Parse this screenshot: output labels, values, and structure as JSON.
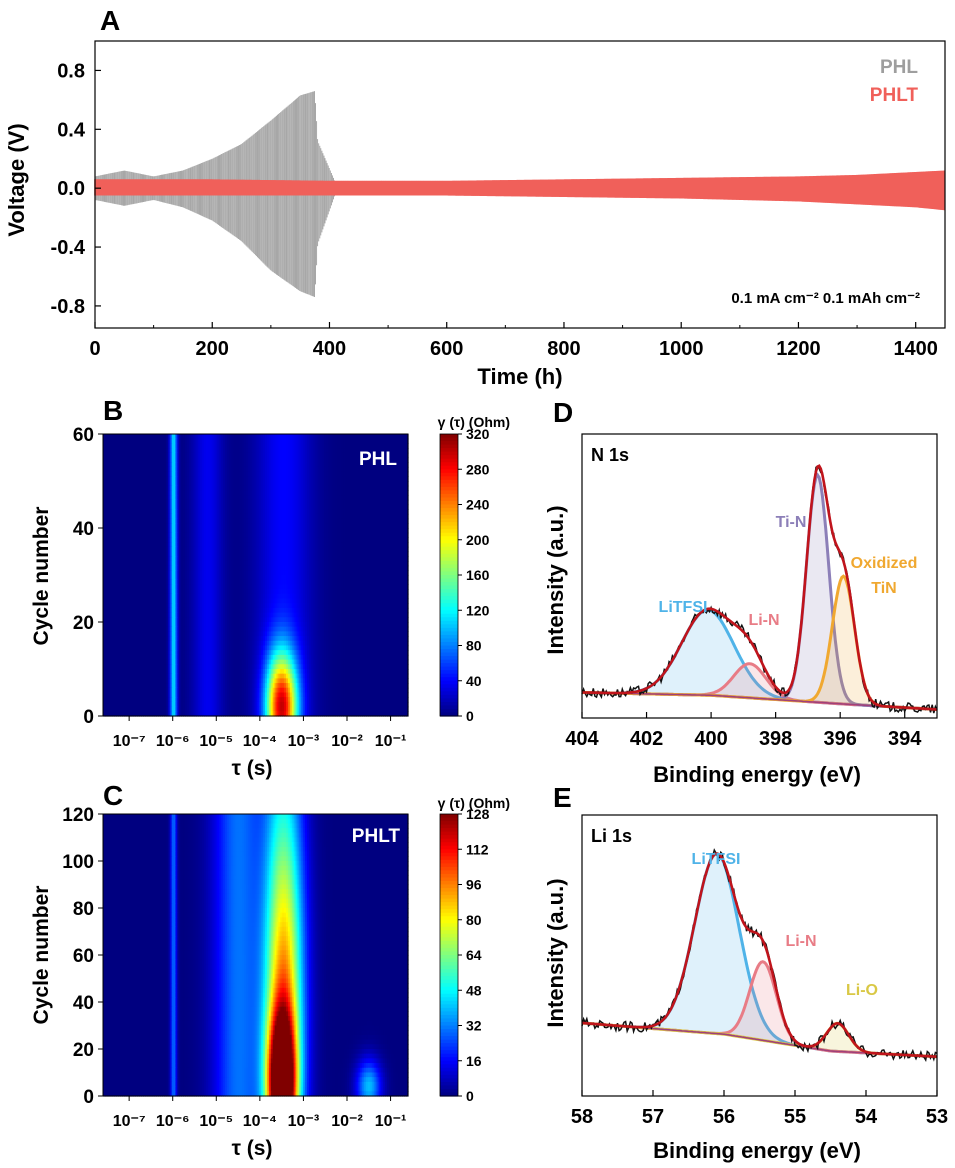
{
  "chart_data": [
    {
      "panel": "A",
      "type": "line",
      "xlabel": "Time (h)",
      "ylabel": "Voltage (V)",
      "xlim": [
        0,
        1450
      ],
      "ylim": [
        -0.95,
        1.0
      ],
      "xticks": [
        "0",
        "200",
        "400",
        "600",
        "800",
        "1000",
        "1200",
        "1400"
      ],
      "yticks": [
        "0.8",
        "0.4",
        "0.0",
        "-0.4",
        "-0.8"
      ],
      "annotation": "0.1 mA cm⁻² 0.1 mAh cm⁻²",
      "series": [
        {
          "name": "PHL",
          "color": "#9e9e9e",
          "x": [
            0,
            50,
            100,
            150,
            200,
            250,
            300,
            350,
            375,
            380,
            410
          ],
          "y_max": [
            0.08,
            0.12,
            0.08,
            0.12,
            0.2,
            0.3,
            0.46,
            0.63,
            0.66,
            0.32,
            0.04
          ],
          "y_min": [
            -0.08,
            -0.12,
            -0.08,
            -0.13,
            -0.22,
            -0.36,
            -0.56,
            -0.7,
            -0.74,
            -0.38,
            -0.04
          ]
        },
        {
          "name": "PHLT",
          "color": "#f0605a",
          "x": [
            0,
            200,
            400,
            600,
            800,
            1000,
            1200,
            1300,
            1400,
            1450
          ],
          "y_max": [
            0.06,
            0.06,
            0.05,
            0.05,
            0.06,
            0.07,
            0.08,
            0.09,
            0.11,
            0.12
          ],
          "y_min": [
            -0.05,
            -0.05,
            -0.05,
            -0.05,
            -0.06,
            -0.07,
            -0.09,
            -0.11,
            -0.13,
            -0.15
          ]
        }
      ]
    },
    {
      "panel": "B",
      "type": "heatmap",
      "title": "PHL",
      "xlabel": "τ (s)",
      "ylabel": "Cycle number",
      "colorbar_title": "γ (τ) (Ohm)",
      "colorbar_ticks": [
        "0",
        "40",
        "80",
        "120",
        "160",
        "200",
        "240",
        "280",
        "320"
      ],
      "yticks": [
        "0",
        "20",
        "40",
        "60"
      ],
      "ylim": [
        0,
        60
      ],
      "zlim": [
        0,
        320
      ],
      "xticks": [
        "10⁻⁷",
        "10⁻⁶",
        "10⁻⁵",
        "10⁻⁴",
        "10⁻³",
        "10⁻²",
        "10⁻¹"
      ],
      "log10_tau_range": [
        -7.6,
        -0.6
      ],
      "features": [
        {
          "log10_tau": -5.98,
          "width": 0.06,
          "cycle_center": 30,
          "cycle_width": 1000,
          "value": 110
        },
        {
          "log10_tau": -5.2,
          "width": 0.25,
          "cycle_center": 30,
          "cycle_width": 1000,
          "value": 35
        },
        {
          "log10_tau": -3.45,
          "width": 0.45,
          "cycle_center": 30,
          "cycle_width": 1000,
          "value": 40
        },
        {
          "log10_tau": -3.5,
          "width": 0.25,
          "cycle_center": 2,
          "cycle_width": 8,
          "value": 260
        }
      ]
    },
    {
      "panel": "C",
      "type": "heatmap",
      "title": "PHLT",
      "xlabel": "τ (s)",
      "ylabel": "Cycle number",
      "colorbar_title": "γ (τ) (Ohm)",
      "colorbar_ticks": [
        "0",
        "16",
        "32",
        "48",
        "64",
        "80",
        "96",
        "112",
        "128"
      ],
      "yticks": [
        "0",
        "20",
        "40",
        "60",
        "80",
        "100",
        "120"
      ],
      "ylim": [
        0,
        120
      ],
      "zlim": [
        0,
        128
      ],
      "xticks": [
        "10⁻⁷",
        "10⁻⁶",
        "10⁻⁵",
        "10⁻⁴",
        "10⁻³",
        "10⁻²",
        "10⁻¹"
      ],
      "log10_tau_range": [
        -7.6,
        -0.6
      ],
      "features": [
        {
          "log10_tau": -5.98,
          "width": 0.05,
          "cycle_center": 60,
          "cycle_width": 1000,
          "value": 30
        },
        {
          "log10_tau": -4.5,
          "width": 0.4,
          "cycle_center": 60,
          "cycle_width": 1000,
          "value": 30
        },
        {
          "log10_tau": -3.45,
          "width": 0.3,
          "cycle_center": 40,
          "cycle_width": 55,
          "value": 70
        },
        {
          "log10_tau": -3.45,
          "width": 0.35,
          "cycle_center": 60,
          "cycle_width": 1000,
          "value": 25
        },
        {
          "log10_tau": -3.5,
          "width": 0.22,
          "cycle_center": 5,
          "cycle_width": 20,
          "value": 120
        },
        {
          "log10_tau": -1.5,
          "width": 0.2,
          "cycle_center": 4,
          "cycle_width": 8,
          "value": 40
        }
      ]
    },
    {
      "panel": "D",
      "type": "line",
      "title": "N 1s",
      "xlabel": "Binding energy (eV)",
      "ylabel": "Intensity (a.u.)",
      "xlim": [
        404,
        393
      ],
      "xticks": [
        "404",
        "402",
        "400",
        "398",
        "396",
        "394"
      ],
      "background": [
        [
          404,
          0.09
        ],
        [
          400,
          0.08
        ],
        [
          396,
          0.05
        ],
        [
          393,
          0.03
        ]
      ],
      "peaks": [
        {
          "name": "LiTFSI",
          "center": 400.1,
          "height": 0.3,
          "width": 1.3,
          "color": "#4fb3e8"
        },
        {
          "name": "Li-N",
          "center": 398.8,
          "height": 0.12,
          "width": 0.8,
          "color": "#e87c86"
        },
        {
          "name": "Ti-N",
          "center": 396.7,
          "height": 0.8,
          "width": 0.55,
          "color": "#8c7fb8"
        },
        {
          "name": "Oxidized TiN",
          "center": 395.9,
          "height": 0.45,
          "width": 0.55,
          "color": "#f0a830"
        }
      ],
      "labels": [
        "LiTFSI",
        "Li-N",
        "Ti-N",
        "Oxidized",
        "TiN"
      ]
    },
    {
      "panel": "E",
      "type": "line",
      "title": "Li 1s",
      "xlabel": "Binding energy (eV)",
      "ylabel": "Intensity (a.u.)",
      "xlim": [
        58,
        53
      ],
      "xticks": [
        "58",
        "57",
        "56",
        "55",
        "54",
        "53"
      ],
      "background": [
        [
          58,
          0.26
        ],
        [
          56,
          0.22
        ],
        [
          54.5,
          0.16
        ],
        [
          53,
          0.14
        ]
      ],
      "peaks": [
        {
          "name": "LiTFSI",
          "center": 56.1,
          "height": 0.64,
          "width": 0.5,
          "color": "#4fb3e8"
        },
        {
          "name": "Li-N",
          "center": 55.45,
          "height": 0.28,
          "width": 0.3,
          "color": "#e87c86"
        },
        {
          "name": "Li-O",
          "center": 54.4,
          "height": 0.1,
          "width": 0.25,
          "color": "#d9c845"
        }
      ],
      "labels": [
        "LiTFSI",
        "Li-N",
        "Li-O"
      ]
    }
  ],
  "panel_letters": [
    "A",
    "B",
    "C",
    "D",
    "E"
  ]
}
